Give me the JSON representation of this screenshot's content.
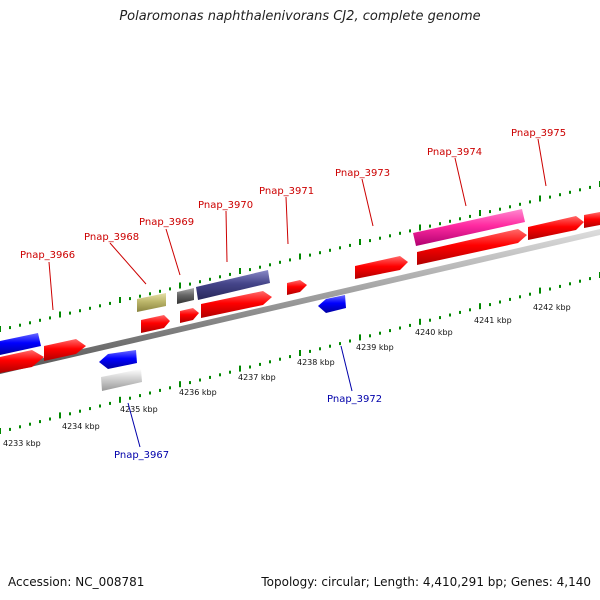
{
  "title": "Polaromonas naphthalenivorans CJ2, complete genome",
  "footer": {
    "accession": "Accession: NC_008781",
    "topology": "Topology: circular; Length: 4,410,291 bp; Genes: 4,140"
  },
  "colors": {
    "forward_gene": "#ff0000",
    "reverse_gene": "#0000ff",
    "forward_label": "#cc0000",
    "reverse_label": "#0000aa",
    "tick": "#008800",
    "backbone": "#999999"
  },
  "scale_labels": [
    "4233 kbp",
    "4234 kbp",
    "4235 kbp",
    "4236 kbp",
    "4237 kbp",
    "4238 kbp",
    "4239 kbp",
    "4240 kbp",
    "4241 kbp",
    "4242 kbp"
  ],
  "gene_labels": [
    {
      "text": "Pnap_3966",
      "strand": "forward"
    },
    {
      "text": "Pnap_3968",
      "strand": "forward"
    },
    {
      "text": "Pnap_3969",
      "strand": "forward"
    },
    {
      "text": "Pnap_3970",
      "strand": "forward"
    },
    {
      "text": "Pnap_3971",
      "strand": "forward"
    },
    {
      "text": "Pnap_3973",
      "strand": "forward"
    },
    {
      "text": "Pnap_3974",
      "strand": "forward"
    },
    {
      "text": "Pnap_3975",
      "strand": "forward"
    },
    {
      "text": "Pnap_3967",
      "strand": "reverse"
    },
    {
      "text": "Pnap_3972",
      "strand": "reverse"
    }
  ]
}
